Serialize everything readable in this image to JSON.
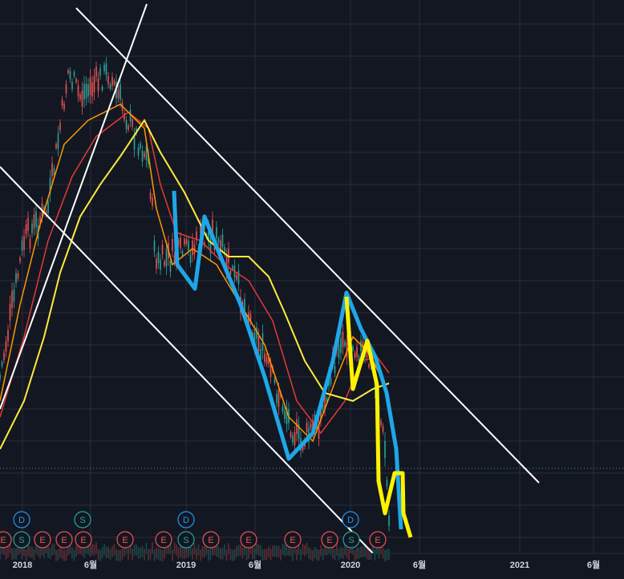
{
  "x_axis": {
    "labels": [
      "2018",
      "6월",
      "2019",
      "6월",
      "2020",
      "6월",
      "2021",
      "6월"
    ]
  },
  "events": {
    "top_row": [
      "D",
      "S",
      "D",
      "D"
    ],
    "bottom_row": [
      "E",
      "S",
      "E",
      "E",
      "E",
      "E",
      "E",
      "S",
      "E",
      "E",
      "E",
      "E",
      "S",
      "E"
    ]
  }
}
